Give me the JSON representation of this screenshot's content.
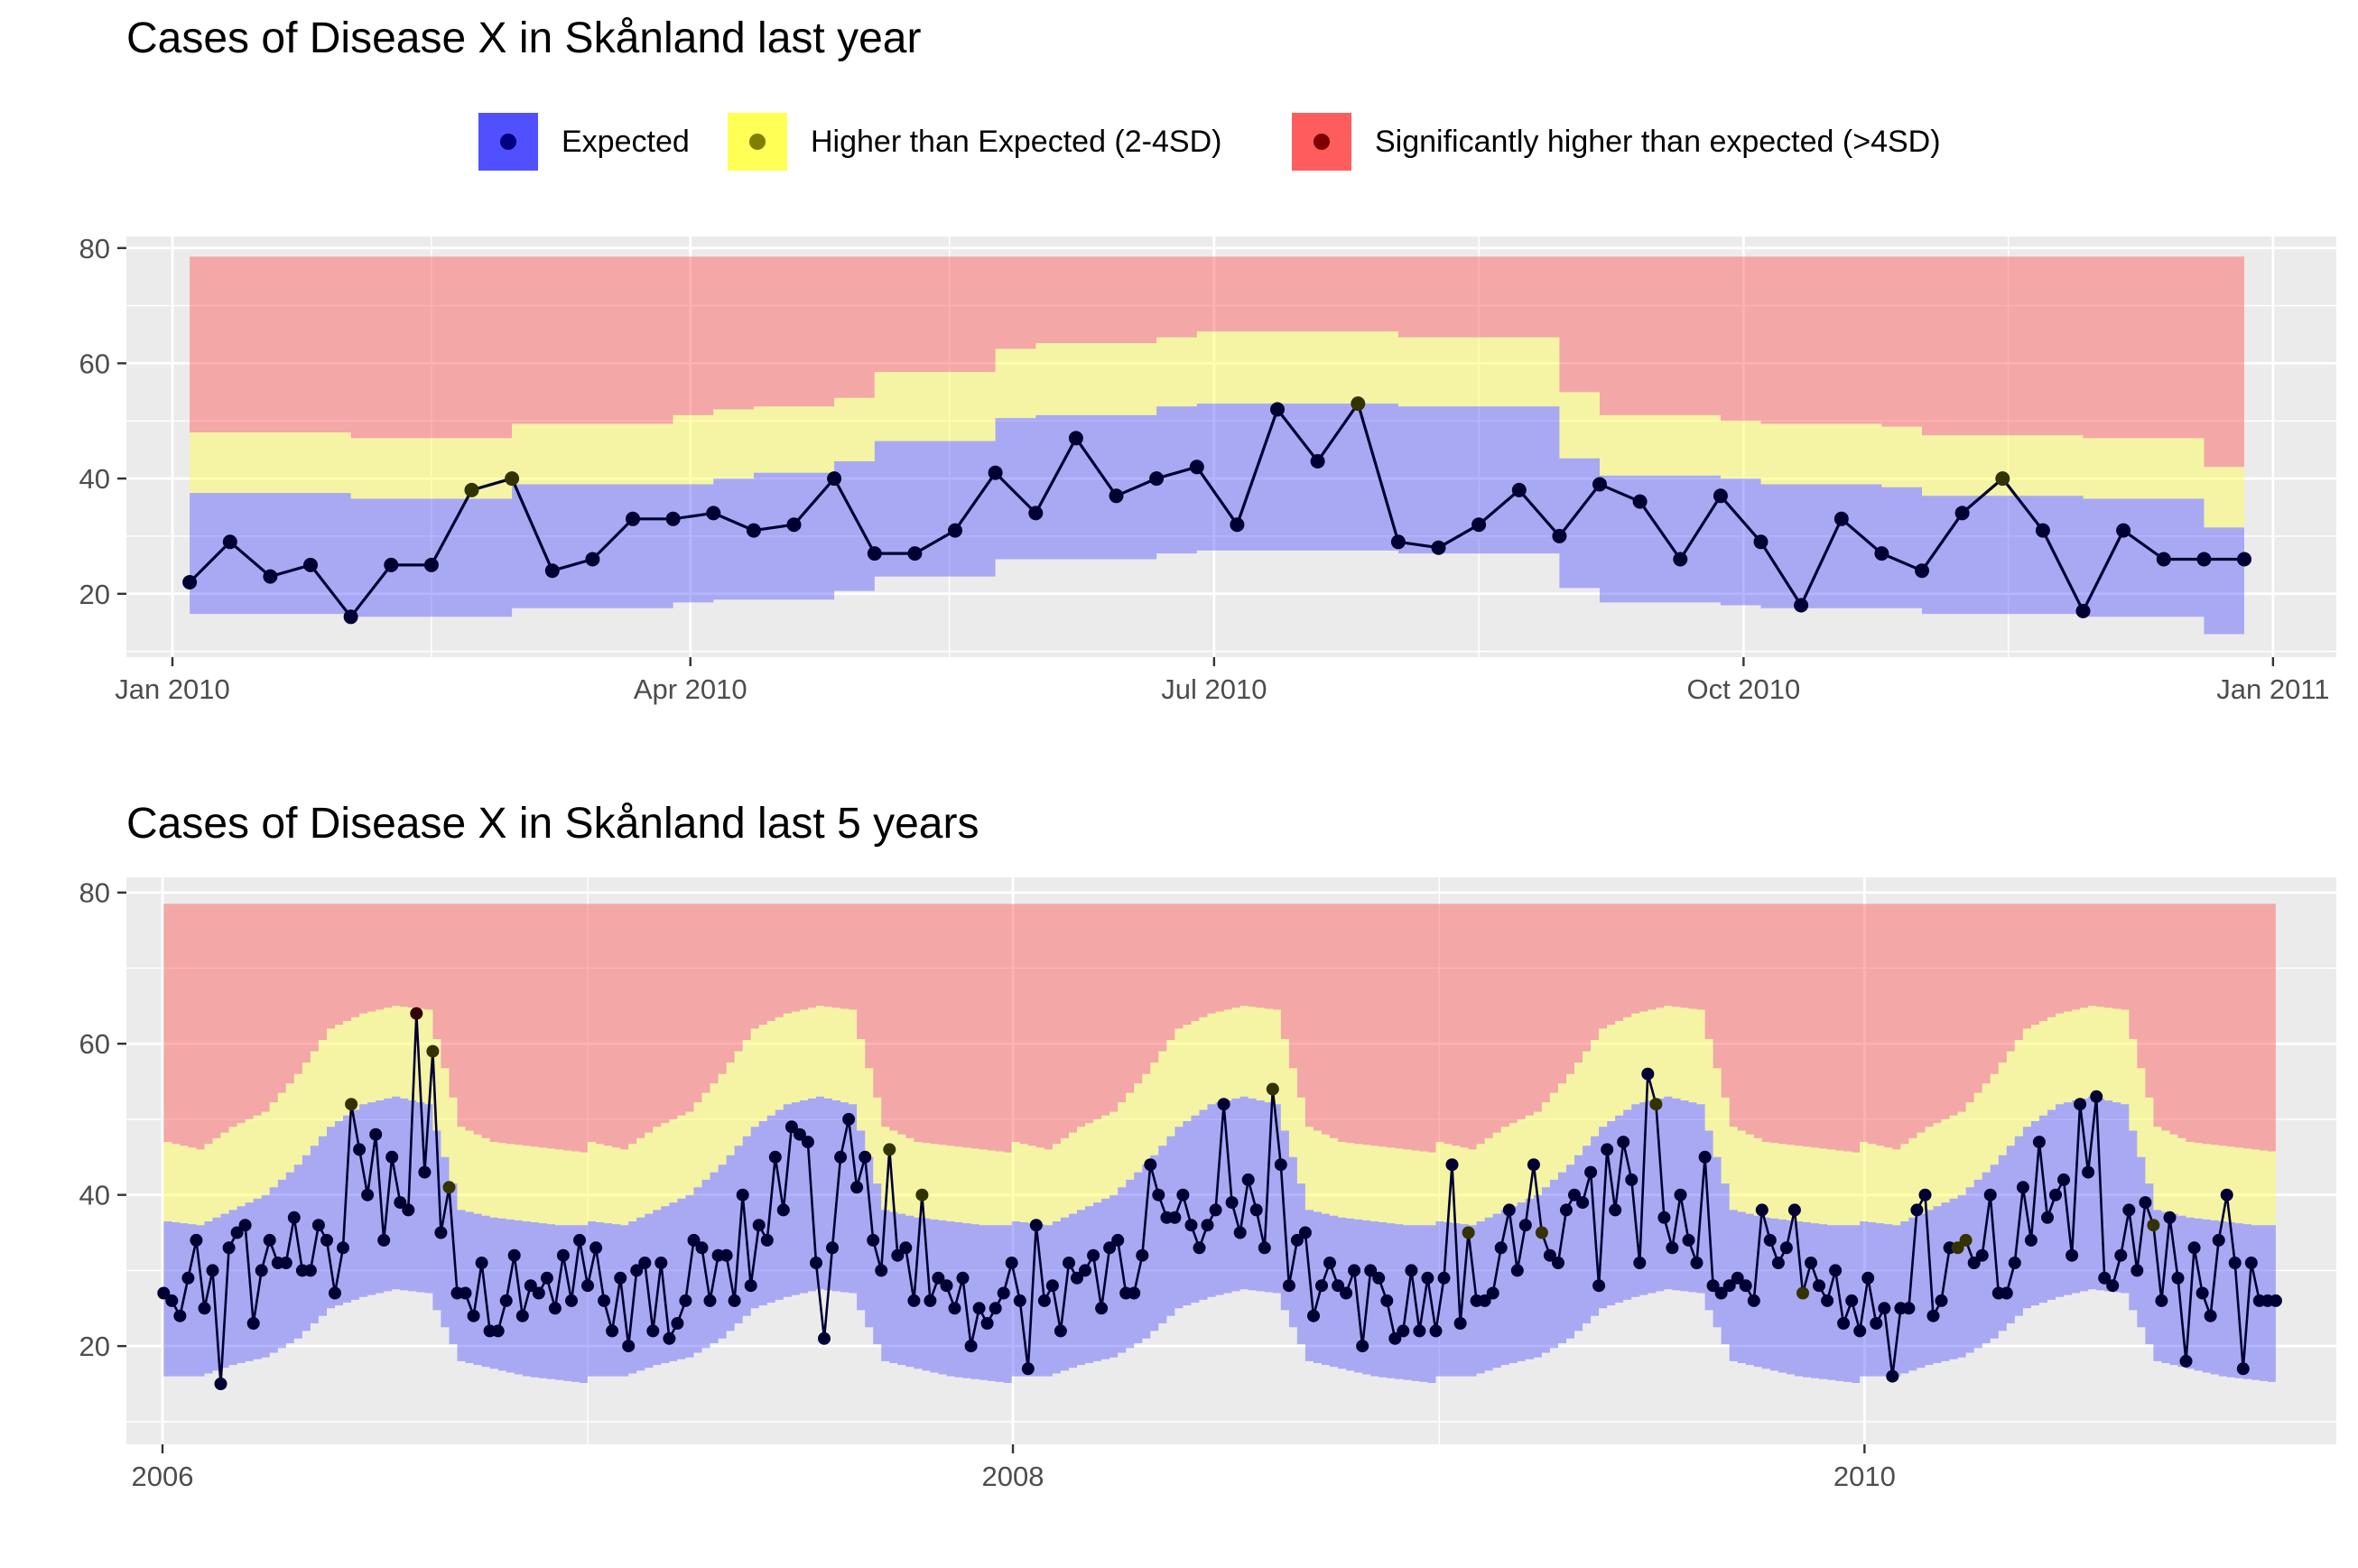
{
  "legend": {
    "items": [
      {
        "label": "Expected",
        "fill": "#4747ff",
        "point": "#000080"
      },
      {
        "label": "Higher than Expected (2-4SD)",
        "fill": "#ffff4d",
        "point": "#808000"
      },
      {
        "label": "Significantly higher than expected (>4SD)",
        "fill": "#ff5454",
        "point": "#800000"
      }
    ]
  },
  "colors": {
    "panel_bg": "#ebebeb",
    "grid_major": "#ffffff",
    "band_expected": "#4747ff",
    "band_higher": "#ffff4d",
    "band_significant": "#ff5454",
    "line": "#000033"
  },
  "chart_data": [
    {
      "type": "area",
      "title": "Cases of Disease X in Skånland last year",
      "xlabel": "",
      "ylabel": "",
      "x_ticks": [
        "Jan 2010",
        "Apr 2010",
        "Jul 2010",
        "Oct 2010",
        "Jan 2011"
      ],
      "y_ticks": [
        20,
        40,
        60,
        80
      ],
      "xlim": [
        "2009-12-24",
        "2011-01-12"
      ],
      "ylim": [
        9,
        82
      ],
      "grid": true,
      "legend_position": "top",
      "x_start": "2010-01-04",
      "week_step_days": 7,
      "series": [
        {
          "name": "",
          "values": [
            22,
            29,
            23,
            25,
            16,
            25,
            25,
            38,
            40,
            24,
            26,
            33,
            33,
            34,
            31,
            32,
            40,
            27,
            27,
            31,
            41,
            34,
            47,
            37,
            40,
            42,
            32,
            52,
            43,
            53,
            29,
            28,
            32,
            38,
            30,
            39,
            36,
            26,
            37,
            29,
            18,
            33,
            27,
            24,
            34,
            40,
            31,
            17,
            31,
            26,
            26,
            26
          ]
        }
      ],
      "point_status": [
        "expected",
        "expected",
        "expected",
        "expected",
        "expected",
        "expected",
        "expected",
        "higher",
        "higher",
        "expected",
        "expected",
        "expected",
        "expected",
        "expected",
        "expected",
        "expected",
        "expected",
        "expected",
        "expected",
        "expected",
        "expected",
        "expected",
        "expected",
        "expected",
        "expected",
        "expected",
        "expected",
        "expected",
        "expected",
        "higher",
        "expected",
        "expected",
        "expected",
        "expected",
        "expected",
        "expected",
        "expected",
        "expected",
        "expected",
        "expected",
        "expected",
        "expected",
        "expected",
        "expected",
        "expected",
        "higher",
        "expected",
        "expected",
        "expected",
        "expected",
        "expected",
        "expected"
      ],
      "bands": {
        "expected_lower": [
          16.5,
          16.5,
          16.5,
          16.5,
          16,
          16,
          16,
          16,
          17.5,
          17.5,
          17.5,
          17.5,
          18.5,
          19,
          19,
          19,
          20.5,
          23,
          23,
          23,
          26,
          26,
          26,
          26,
          27,
          27.5,
          27.5,
          27.5,
          27.5,
          27.5,
          27,
          27,
          27,
          27,
          21,
          18.5,
          18.5,
          18.5,
          18,
          17.5,
          17.5,
          17.5,
          17.5,
          16.5,
          16.5,
          16.5,
          16.5,
          16,
          16,
          16,
          13,
          9.5
        ],
        "expected_upper": [
          37.5,
          37.5,
          37.5,
          37.5,
          36.5,
          36.5,
          36.5,
          36.5,
          39,
          39,
          39,
          39,
          39,
          40,
          41,
          41,
          43,
          46.5,
          46.5,
          46.5,
          50.5,
          51,
          51,
          51,
          52.5,
          53,
          53,
          53,
          53,
          53,
          52.5,
          52.5,
          52.5,
          52.5,
          43.5,
          40.5,
          40.5,
          40.5,
          40,
          39,
          39,
          39,
          38.5,
          37,
          37,
          37,
          37,
          36.5,
          36.5,
          36.5,
          31.5,
          26
        ],
        "higher_upper": [
          48,
          48,
          48,
          48,
          47,
          47,
          47,
          47,
          49.5,
          49.5,
          49.5,
          49.5,
          51,
          52,
          52.5,
          52.5,
          54,
          58.5,
          58.5,
          58.5,
          62.5,
          63.5,
          63.5,
          63.5,
          64.5,
          65.5,
          65.5,
          65.5,
          65.5,
          65.5,
          64.5,
          64.5,
          64.5,
          64.5,
          55,
          51,
          51,
          51,
          50,
          49.5,
          49.5,
          49.5,
          49,
          47.5,
          47.5,
          47.5,
          47.5,
          47,
          47,
          47,
          42,
          36
        ],
        "significant_upper": 78.5
      }
    },
    {
      "type": "area",
      "title": "Cases of Disease X in Skånland last 5 years",
      "xlabel": "",
      "ylabel": "",
      "x_ticks": [
        "2006",
        "2008",
        "2010"
      ],
      "y_ticks": [
        20,
        40,
        60,
        80
      ],
      "xlim": [
        "2005-12-01",
        "2011-02-10"
      ],
      "ylim": [
        7,
        82
      ],
      "grid": true,
      "legend_position": "top",
      "x_start": "2006-01-02",
      "week_step_days": 7,
      "series": [
        {
          "name": "",
          "values": [
            27,
            26,
            24,
            29,
            34,
            25,
            30,
            15,
            33,
            35,
            36,
            23,
            30,
            34,
            31,
            31,
            37,
            30,
            30,
            36,
            34,
            27,
            33,
            52,
            46,
            40,
            48,
            34,
            45,
            39,
            38,
            64,
            43,
            59,
            35,
            41,
            27,
            27,
            24,
            31,
            22,
            22,
            26,
            32,
            24,
            28,
            27,
            29,
            25,
            32,
            26,
            34,
            28,
            33,
            26,
            22,
            29,
            20,
            30,
            31,
            22,
            31,
            21,
            23,
            26,
            34,
            33,
            26,
            32,
            32,
            26,
            40,
            28,
            36,
            34,
            45,
            38,
            49,
            48,
            47,
            31,
            21,
            33,
            45,
            50,
            41,
            45,
            34,
            30,
            46,
            32,
            33,
            26,
            40,
            26,
            29,
            28,
            25,
            29,
            20,
            25,
            23,
            25,
            27,
            31,
            26,
            17,
            36,
            26,
            28,
            22,
            31,
            29,
            30,
            32,
            25,
            33,
            34,
            27,
            27,
            32,
            44,
            40,
            37,
            37,
            40,
            36,
            33,
            36,
            38,
            52,
            39,
            35,
            42,
            38,
            33,
            54,
            44,
            28,
            34,
            35,
            24,
            28,
            31,
            28,
            27,
            30,
            20,
            30,
            29,
            26,
            21,
            22,
            30,
            22,
            29,
            22,
            29,
            44,
            23,
            35,
            26,
            26,
            27,
            33,
            38,
            30,
            36,
            44,
            35,
            32,
            31,
            38,
            40,
            39,
            43,
            28,
            46,
            38,
            47,
            42,
            31,
            56,
            52,
            37,
            33,
            40,
            34,
            31,
            45,
            28,
            27,
            28,
            29,
            28,
            26,
            38,
            34,
            31,
            33,
            38,
            27,
            31,
            28,
            26,
            30,
            23,
            26,
            22,
            29,
            23,
            25,
            16,
            25,
            25,
            38,
            40,
            24,
            26,
            33,
            33,
            34,
            31,
            32,
            40,
            27,
            27,
            31,
            41,
            34,
            47,
            37,
            40,
            42,
            32,
            52,
            43,
            53,
            29,
            28,
            32,
            38,
            30,
            39,
            36,
            26,
            37,
            29,
            18,
            33,
            27,
            24,
            34,
            40,
            31,
            17,
            31,
            26,
            26,
            26
          ]
        }
      ],
      "point_status": [
        "expected",
        "expected",
        "expected",
        "expected",
        "expected",
        "expected",
        "expected",
        "expected",
        "expected",
        "expected",
        "expected",
        "expected",
        "expected",
        "expected",
        "expected",
        "expected",
        "expected",
        "expected",
        "expected",
        "expected",
        "expected",
        "expected",
        "expected",
        "higher",
        "expected",
        "expected",
        "expected",
        "expected",
        "expected",
        "expected",
        "expected",
        "significant",
        "expected",
        "higher",
        "expected",
        "higher",
        "expected",
        "expected",
        "expected",
        "expected",
        "expected",
        "expected",
        "expected",
        "expected",
        "expected",
        "expected",
        "expected",
        "expected",
        "expected",
        "expected",
        "expected",
        "expected",
        "expected",
        "expected",
        "expected",
        "expected",
        "expected",
        "expected",
        "expected",
        "expected",
        "expected",
        "expected",
        "expected",
        "expected",
        "expected",
        "expected",
        "expected",
        "expected",
        "expected",
        "expected",
        "expected",
        "expected",
        "expected",
        "expected",
        "expected",
        "expected",
        "expected",
        "expected",
        "expected",
        "expected",
        "expected",
        "expected",
        "expected",
        "expected",
        "expected",
        "expected",
        "expected",
        "expected",
        "expected",
        "higher",
        "expected",
        "expected",
        "expected",
        "higher",
        "expected",
        "expected",
        "expected",
        "expected",
        "expected",
        "expected",
        "expected",
        "expected",
        "expected",
        "expected",
        "expected",
        "expected",
        "expected",
        "expected",
        "expected",
        "expected",
        "expected",
        "expected",
        "expected",
        "expected",
        "expected",
        "expected",
        "expected",
        "expected",
        "expected",
        "expected",
        "expected",
        "expected",
        "expected",
        "expected",
        "expected",
        "expected",
        "expected",
        "expected",
        "expected",
        "expected",
        "expected",
        "expected",
        "expected",
        "expected",
        "expected",
        "expected",
        "higher",
        "expected",
        "expected",
        "expected",
        "expected",
        "expected",
        "expected",
        "expected",
        "expected",
        "expected",
        "expected",
        "expected",
        "expected",
        "expected",
        "expected",
        "expected",
        "expected",
        "expected",
        "expected",
        "expected",
        "expected",
        "expected",
        "expected",
        "expected",
        "higher",
        "expected",
        "expected",
        "expected",
        "expected",
        "expected",
        "expected",
        "expected",
        "expected",
        "higher",
        "expected",
        "expected",
        "expected",
        "expected",
        "expected",
        "expected",
        "expected",
        "expected",
        "expected",
        "expected",
        "expected",
        "expected",
        "expected",
        "higher",
        "expected",
        "expected",
        "expected",
        "expected",
        "expected",
        "expected",
        "expected",
        "expected",
        "expected",
        "expected",
        "expected",
        "expected",
        "expected",
        "expected",
        "expected",
        "expected",
        "expected",
        "higher",
        "expected",
        "expected",
        "expected",
        "expected",
        "expected",
        "expected",
        "expected",
        "expected",
        "expected",
        "expected",
        "expected",
        "expected",
        "expected",
        "expected",
        "expected",
        "expected",
        "expected",
        "expected",
        "higher",
        "higher",
        "expected",
        "expected",
        "expected",
        "expected",
        "expected",
        "expected",
        "expected",
        "expected",
        "expected",
        "expected",
        "expected",
        "expected",
        "expected",
        "expected",
        "expected",
        "expected",
        "expected",
        "expected",
        "expected",
        "expected",
        "expected",
        "expected",
        "higher",
        "expected",
        "expected",
        "expected",
        "expected",
        "expected",
        "expected",
        "expected",
        "expected",
        "expected",
        "expected",
        "expected",
        "expected",
        "expected",
        "expected",
        "expected",
        "expected",
        "higher",
        "expected",
        "expected",
        "expected",
        "expected",
        "expected",
        "expected"
      ],
      "bands_annual": {
        "weeks_of_year": [
          1,
          5,
          9,
          13,
          17,
          21,
          25,
          29,
          33,
          37,
          41,
          45,
          49,
          53
        ],
        "expected_lower": [
          16,
          16,
          17.5,
          18.5,
          21,
          25,
          26.5,
          27.5,
          27,
          18,
          17,
          16,
          15.5,
          15
        ],
        "expected_upper": [
          36.5,
          36,
          38,
          40,
          44,
          49,
          52,
          53,
          52,
          38,
          37,
          36.5,
          36,
          36
        ],
        "higher_upper": [
          47,
          46,
          49,
          51,
          56,
          62,
          64,
          65,
          64.5,
          49,
          47,
          46.5,
          46,
          45.5
        ],
        "significant_upper": 78.5
      }
    }
  ]
}
